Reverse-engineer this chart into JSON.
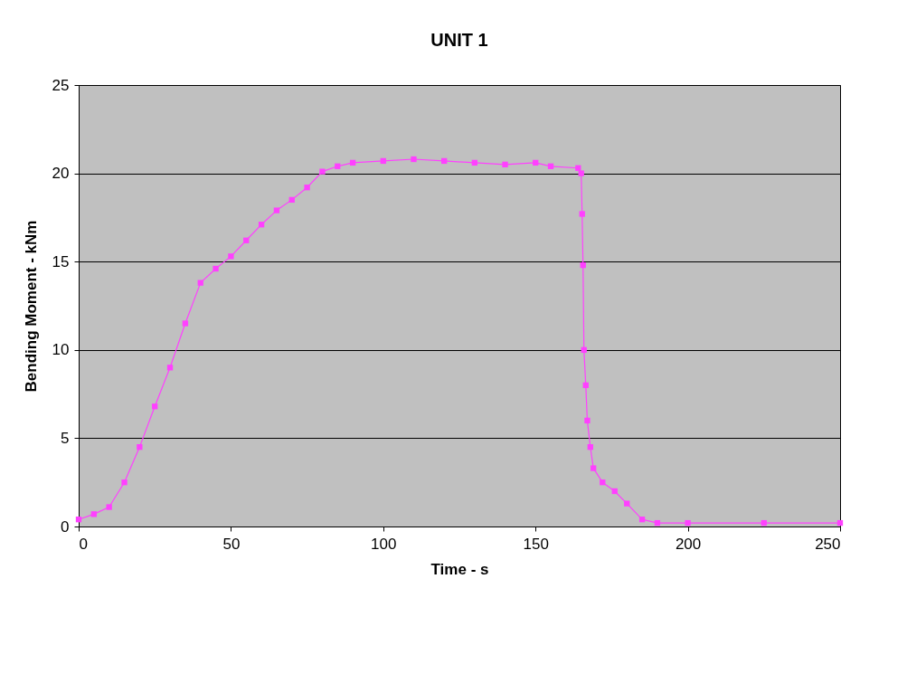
{
  "chart_data": {
    "type": "line",
    "title": "UNIT 1",
    "xlabel": "Time - s",
    "ylabel": "Bending Moment - kNm",
    "x": [
      0,
      5,
      10,
      15,
      20,
      25,
      30,
      35,
      40,
      45,
      50,
      55,
      60,
      65,
      70,
      75,
      80,
      85,
      90,
      100,
      110,
      120,
      130,
      140,
      150,
      155,
      164,
      165,
      165.3,
      165.6,
      165.9,
      166.5,
      167,
      168,
      169,
      172,
      176,
      180,
      185,
      190,
      200,
      225,
      250
    ],
    "series": [
      {
        "color": "#ff40ff",
        "values": [
          0.4,
          0.7,
          1.1,
          2.5,
          4.5,
          6.8,
          9.0,
          11.5,
          13.8,
          14.6,
          15.3,
          16.2,
          17.1,
          17.9,
          18.5,
          19.2,
          20.1,
          20.4,
          20.6,
          20.7,
          20.8,
          20.7,
          20.6,
          20.5,
          20.6,
          20.4,
          20.3,
          20.0,
          17.7,
          14.8,
          10.0,
          8.0,
          6.0,
          4.5,
          3.3,
          2.5,
          2.0,
          1.3,
          0.4,
          0.2,
          0.2,
          0.2,
          0.2
        ]
      }
    ],
    "xlim": [
      0,
      250
    ],
    "xticks": [
      0,
      50,
      100,
      150,
      200,
      250
    ],
    "ylim": [
      0,
      25
    ],
    "yticks": [
      0,
      5,
      10,
      15,
      20,
      25
    ],
    "grid": "y",
    "legend": false,
    "marker": "square",
    "line_style": "solid"
  }
}
